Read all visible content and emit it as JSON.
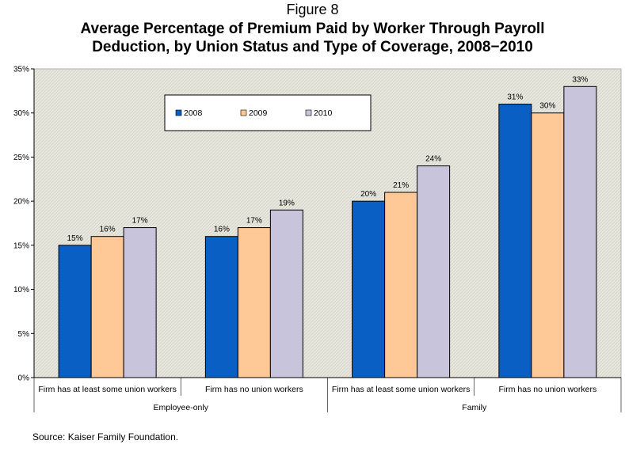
{
  "figure_label": "Figure 8",
  "title_line1": "Average Percentage of Premium Paid by Worker Through Payroll",
  "title_line2": "Deduction, by Union Status and Type of Coverage, 2008−2010",
  "source": "Source: Kaiser Family Foundation.",
  "colors": {
    "2008": "#0a5fc4",
    "2009": "#ffc896",
    "2010": "#c8c4dc"
  },
  "chart_data": {
    "type": "bar",
    "ylim": [
      0,
      35
    ],
    "yticks": [
      "0%",
      "5%",
      "10%",
      "15%",
      "20%",
      "25%",
      "30%",
      "35%"
    ],
    "grid": false,
    "legend_position": "top-left inside plot",
    "categories": [
      "Firm has at least some union workers",
      "Firm has no union workers",
      "Firm has at least some union workers",
      "Firm has no union workers"
    ],
    "groups": [
      {
        "label": "Employee-only",
        "categories": [
          0,
          1
        ]
      },
      {
        "label": "Family",
        "categories": [
          2,
          3
        ]
      }
    ],
    "series": [
      {
        "name": "2008",
        "values": [
          15,
          16,
          20,
          31
        ],
        "labels": [
          "15%",
          "16%",
          "20%",
          "31%"
        ]
      },
      {
        "name": "2009",
        "values": [
          16,
          17,
          21,
          30
        ],
        "labels": [
          "16%",
          "17%",
          "21%",
          "30%"
        ]
      },
      {
        "name": "2010",
        "values": [
          17,
          19,
          24,
          33
        ],
        "labels": [
          "17%",
          "19%",
          "24%",
          "33%"
        ]
      }
    ]
  }
}
